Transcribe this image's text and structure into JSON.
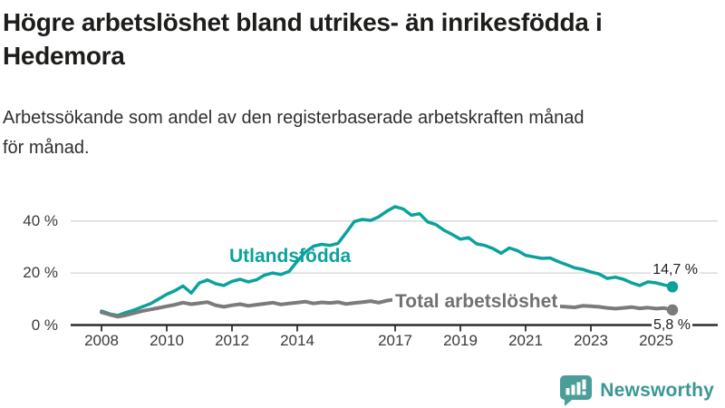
{
  "header": {
    "title_lines": [
      "Högre arbetslöshet bland utrikes- än inrikesfödda i",
      "Hedemora"
    ],
    "subtitle_lines": [
      "Arbetssökande som andel av den registerbaserade arbetskraften månad",
      "för månad."
    ]
  },
  "chart_data": {
    "type": "line",
    "title": "Högre arbetslöshet bland utrikes- än inrikesfödda i Hedemora",
    "subtitle": "Arbetssökande som andel av den registerbaserade arbetskraften månad för månad.",
    "unit": "%",
    "x_start": 2008.0,
    "x_step": 0.25,
    "xlim": [
      2007.4,
      2026.3
    ],
    "ylim": [
      0,
      48
    ],
    "grid": "horizontal",
    "y_gridlines": [
      20,
      40
    ],
    "y_ticks": [
      {
        "v": 0,
        "label": "0 %"
      },
      {
        "v": 20,
        "label": "20 %"
      },
      {
        "v": 40,
        "label": "40 %"
      }
    ],
    "x_ticks": [
      {
        "v": 2008,
        "label": "2008"
      },
      {
        "v": 2010,
        "label": "2010"
      },
      {
        "v": 2012,
        "label": "2012"
      },
      {
        "v": 2014,
        "label": "2014"
      },
      {
        "v": 2017,
        "label": "2017"
      },
      {
        "v": 2019,
        "label": "2019"
      },
      {
        "v": 2021,
        "label": "2021"
      },
      {
        "v": 2023,
        "label": "2023"
      },
      {
        "v": 2025,
        "label": "2025"
      }
    ],
    "series": [
      {
        "name": "Utlandsfödda",
        "color": "#0ba29c",
        "stroke_width": 3.5,
        "end_label": "14,7 %",
        "end_value": 14.7,
        "values": [
          5.4,
          4.3,
          3.7,
          4.8,
          5.8,
          7.0,
          8.2,
          10.0,
          11.8,
          13.2,
          15.0,
          12.3,
          16.2,
          17.3,
          15.9,
          15.2,
          16.8,
          17.6,
          16.6,
          17.4,
          19.2,
          20.0,
          19.4,
          20.6,
          24.5,
          28.0,
          30.3,
          31.0,
          30.6,
          31.4,
          35.5,
          39.8,
          40.6,
          40.2,
          41.6,
          43.8,
          45.5,
          44.6,
          42.2,
          42.8,
          39.6,
          38.6,
          36.4,
          34.8,
          33.0,
          33.6,
          31.2,
          30.6,
          29.4,
          27.6,
          29.6,
          28.6,
          26.8,
          26.2,
          25.6,
          25.8,
          24.4,
          23.2,
          22.0,
          21.4,
          20.4,
          19.6,
          17.9,
          18.4,
          17.6,
          16.2,
          15.2,
          16.6,
          16.2,
          15.4,
          14.7
        ]
      },
      {
        "name": "Total arbetslöshet",
        "color": "#7b7b7b",
        "stroke_width": 4,
        "end_label": "5,8 %",
        "end_value": 5.8,
        "values": [
          4.9,
          4.0,
          3.2,
          3.8,
          4.6,
          5.4,
          6.0,
          6.6,
          7.2,
          7.8,
          8.6,
          8.0,
          8.4,
          8.8,
          7.6,
          7.0,
          7.6,
          8.0,
          7.4,
          7.8,
          8.2,
          8.6,
          7.9,
          8.3,
          8.6,
          9.0,
          8.3,
          8.7,
          8.5,
          8.8,
          8.1,
          8.5,
          8.8,
          9.2,
          8.6,
          9.4,
          9.8,
          10.0,
          9.4,
          9.6,
          9.4,
          9.0,
          8.6,
          8.8,
          8.4,
          8.0,
          7.6,
          7.8,
          8.6,
          9.2,
          8.8,
          8.4,
          8.0,
          7.8,
          7.4,
          7.6,
          7.2,
          7.0,
          6.8,
          7.4,
          7.2,
          7.0,
          6.6,
          6.3,
          6.6,
          6.9,
          6.4,
          6.7,
          6.3,
          6.5,
          5.8
        ]
      }
    ],
    "colors": {
      "axis": "#2e2e2e",
      "gridline": "#d9d9d9",
      "tick_text": "#3a3a3a"
    }
  },
  "footer": {
    "brand": "Newsworthy",
    "logo_color": "#4a9d99",
    "text_color": "#3b9793"
  }
}
